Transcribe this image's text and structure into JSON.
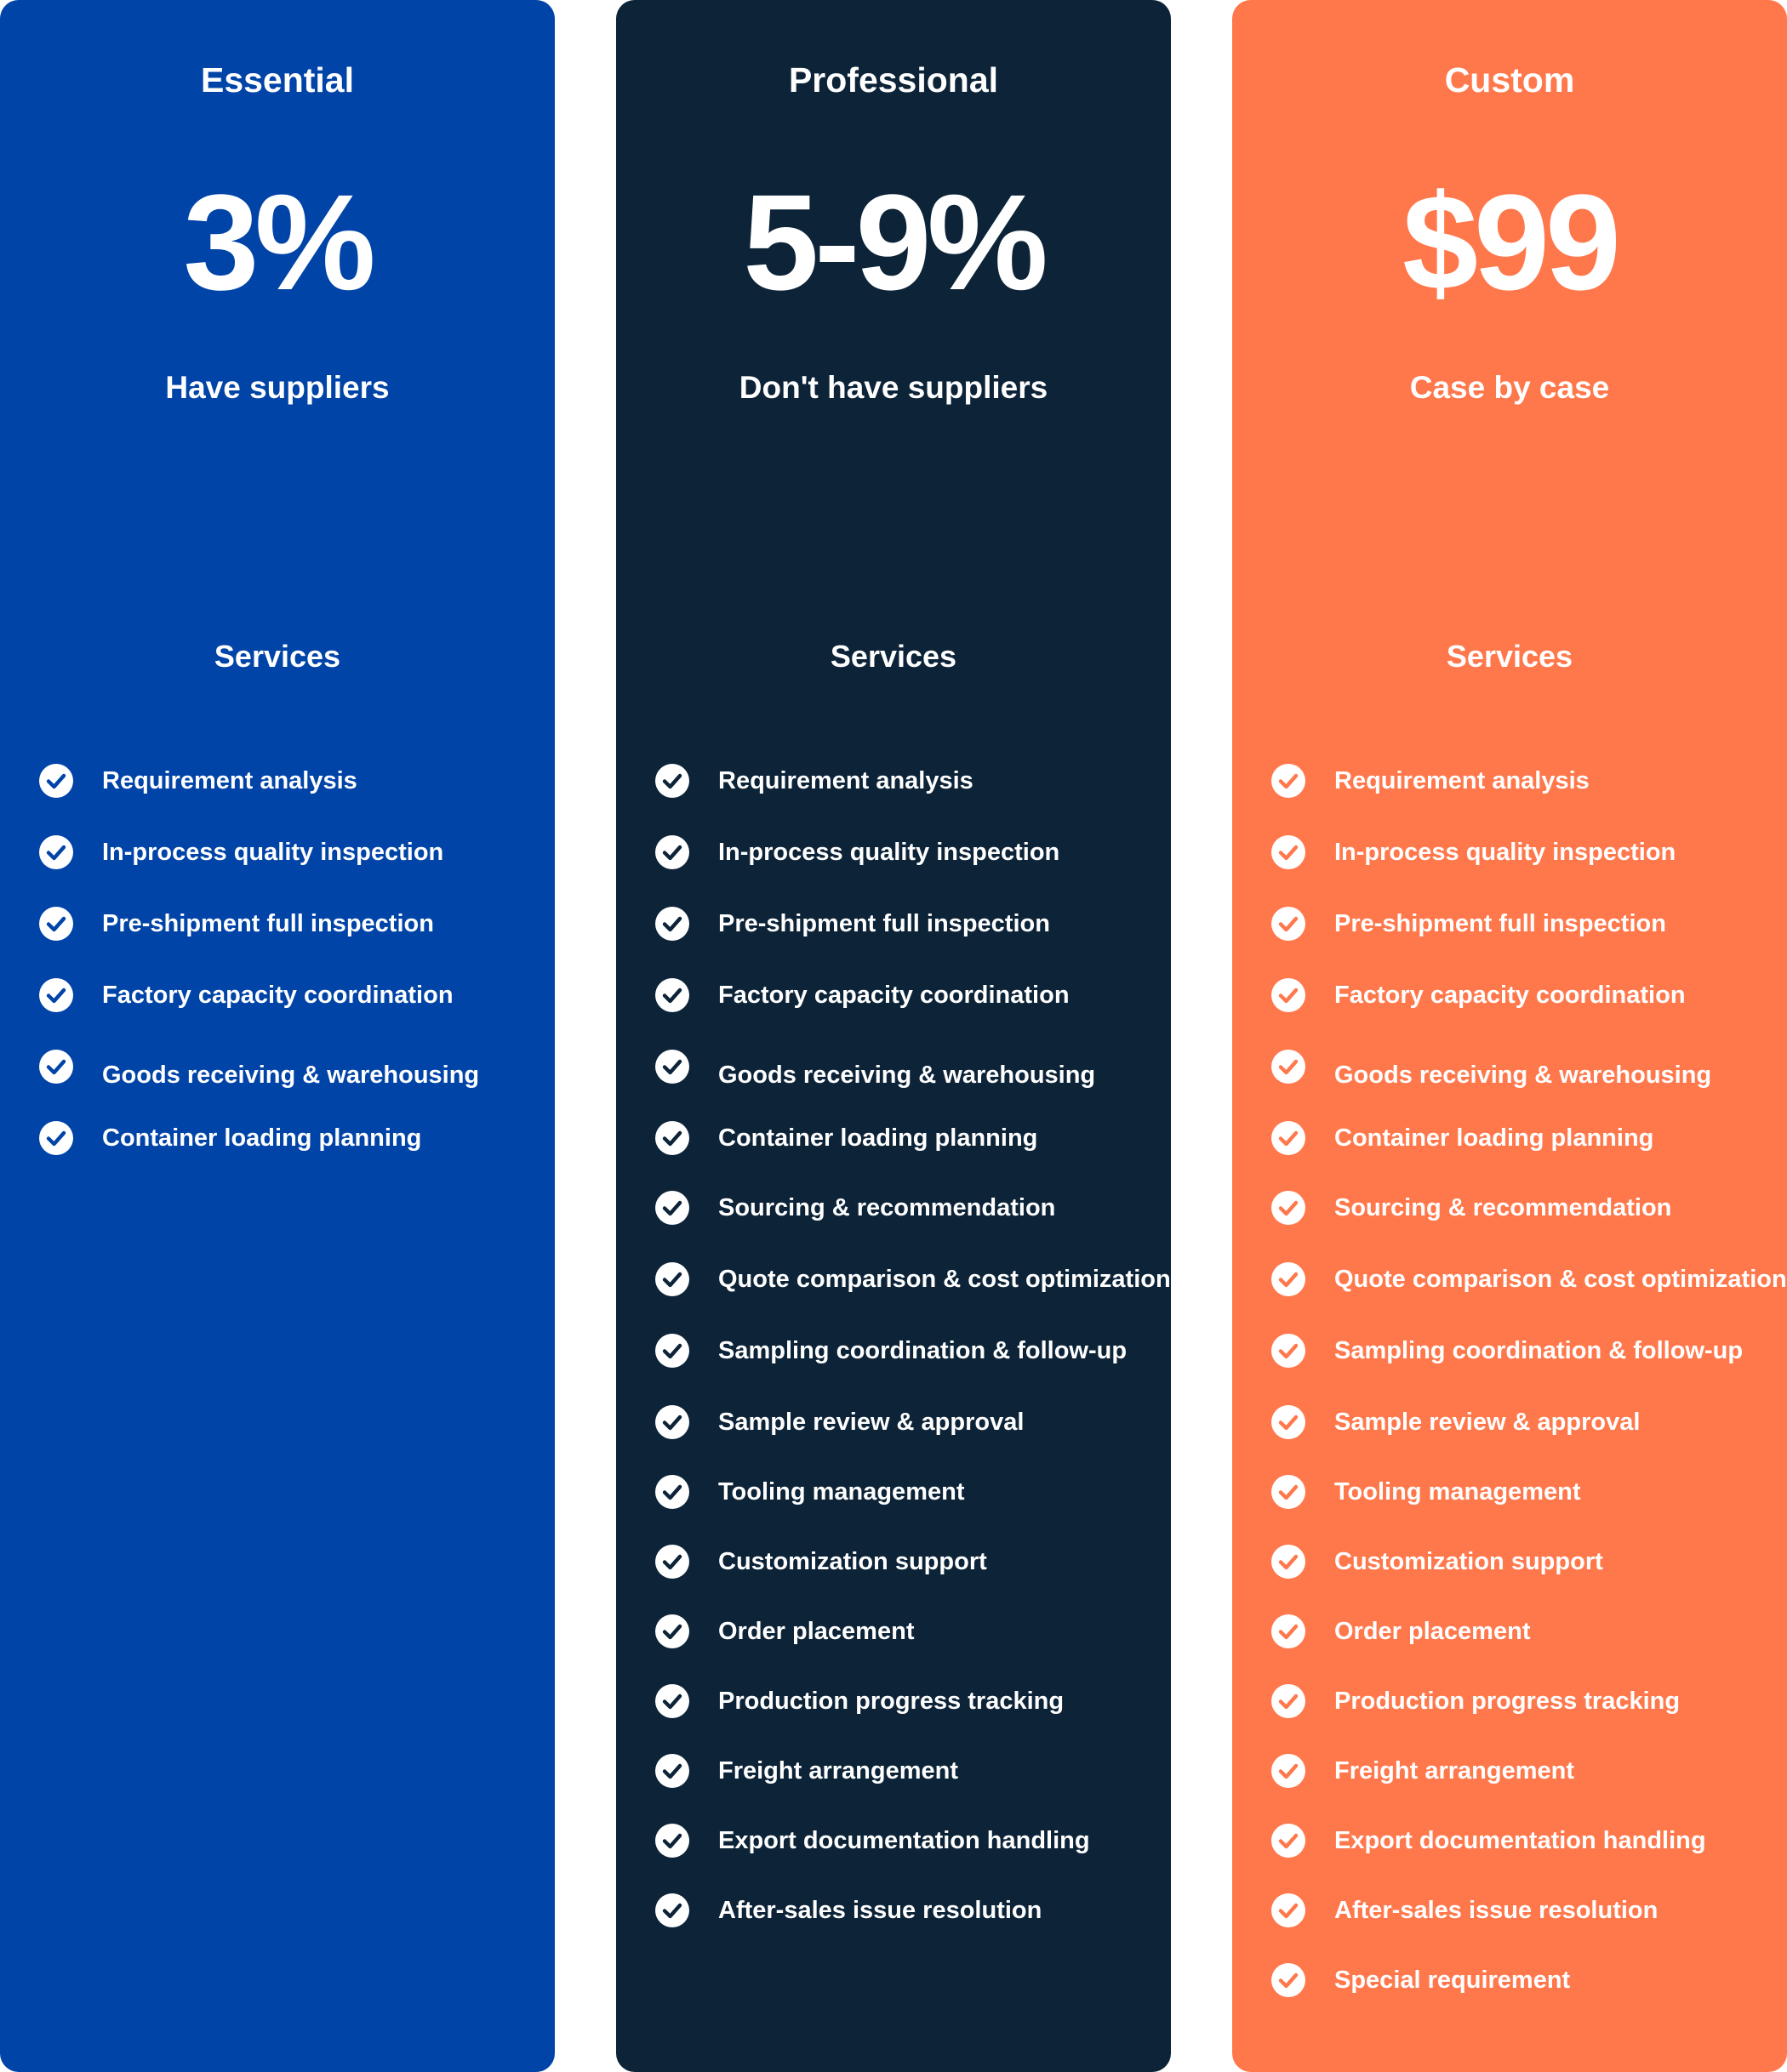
{
  "plans": {
    "essential": {
      "name": "Essential",
      "price": "3%",
      "subtitle": "Have suppliers",
      "services_title": "Services",
      "color": "#0044a8",
      "services": [
        "Requirement analysis",
        "In-process quality inspection",
        "Pre-shipment full inspection",
        "Factory capacity coordination",
        "Goods receiving & warehousing",
        "Container loading planning"
      ]
    },
    "professional": {
      "name": "Professional",
      "price": "5-9%",
      "subtitle": "Don't have suppliers",
      "services_title": "Services",
      "color": "#0c2338",
      "services": [
        "Requirement analysis",
        "In-process quality inspection",
        "Pre-shipment full inspection",
        "Factory capacity coordination",
        "Goods receiving & warehousing",
        "Container loading planning",
        "Sourcing & recommendation",
        "Quote comparison & cost optimization",
        "Sampling coordination & follow-up",
        "Sample review & approval",
        "Tooling management",
        "Customization support",
        "Order placement",
        "Production progress tracking",
        "Freight arrangement",
        "Export documentation handling",
        "After-sales issue resolution"
      ]
    },
    "custom": {
      "name": "Custom",
      "price": "$99",
      "subtitle": "Case by case",
      "services_title": "Services",
      "color": "#ff784c",
      "services": [
        "Requirement analysis",
        "In-process quality inspection",
        "Pre-shipment full inspection",
        "Factory capacity coordination",
        "Goods receiving & warehousing",
        "Container loading planning",
        "Sourcing & recommendation",
        "Quote comparison & cost optimization",
        "Sampling coordination & follow-up",
        "Sample review & approval",
        "Tooling management",
        "Customization support",
        "Order placement",
        "Production progress tracking",
        "Freight arrangement",
        "Export documentation handling",
        "After-sales issue resolution",
        "Special requirement"
      ]
    }
  },
  "icons": {
    "service_check": "check-circle-icon"
  }
}
